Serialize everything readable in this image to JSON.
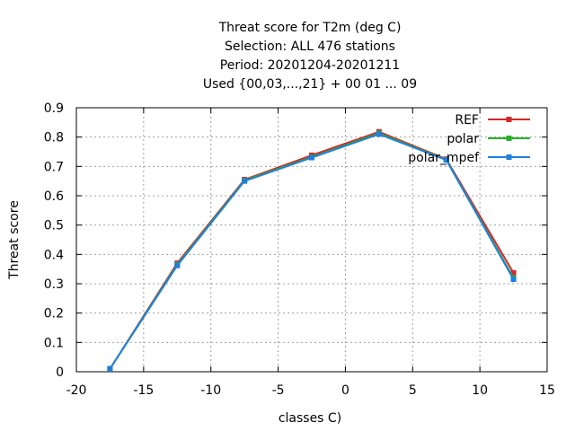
{
  "chart_data": {
    "type": "line",
    "title_lines": [
      "Threat score  for T2m (deg C)",
      "Selection: ALL    476 stations",
      "Period: 20201204-20201211",
      "Used {00,03,...,21} + 00 01 ... 09"
    ],
    "xlabel": "classes C)",
    "ylabel": "Threat score",
    "xlim": [
      -20,
      15
    ],
    "ylim": [
      0,
      0.9
    ],
    "xticks": [
      -20,
      -15,
      -10,
      -5,
      0,
      5,
      10,
      15
    ],
    "yticks": [
      0,
      0.1,
      0.2,
      0.3,
      0.4,
      0.5,
      0.6,
      0.7,
      0.8,
      0.9
    ],
    "grid": true,
    "legend_position": "top-right",
    "x": [
      -17.5,
      -12.5,
      -7.5,
      -2.5,
      2.5,
      7.5,
      12.5
    ],
    "series": [
      {
        "name": "REF",
        "color": "#d62728",
        "values": [
          0.01,
          0.37,
          0.655,
          0.738,
          0.818,
          0.725,
          0.337
        ]
      },
      {
        "name": "polar",
        "color": "#22b222",
        "values": [
          0.01,
          0.365,
          0.652,
          0.732,
          0.813,
          0.723,
          0.32
        ]
      },
      {
        "name": "polar_mpef",
        "color": "#1f7fe0",
        "values": [
          0.01,
          0.362,
          0.65,
          0.73,
          0.81,
          0.722,
          0.315
        ]
      }
    ]
  }
}
